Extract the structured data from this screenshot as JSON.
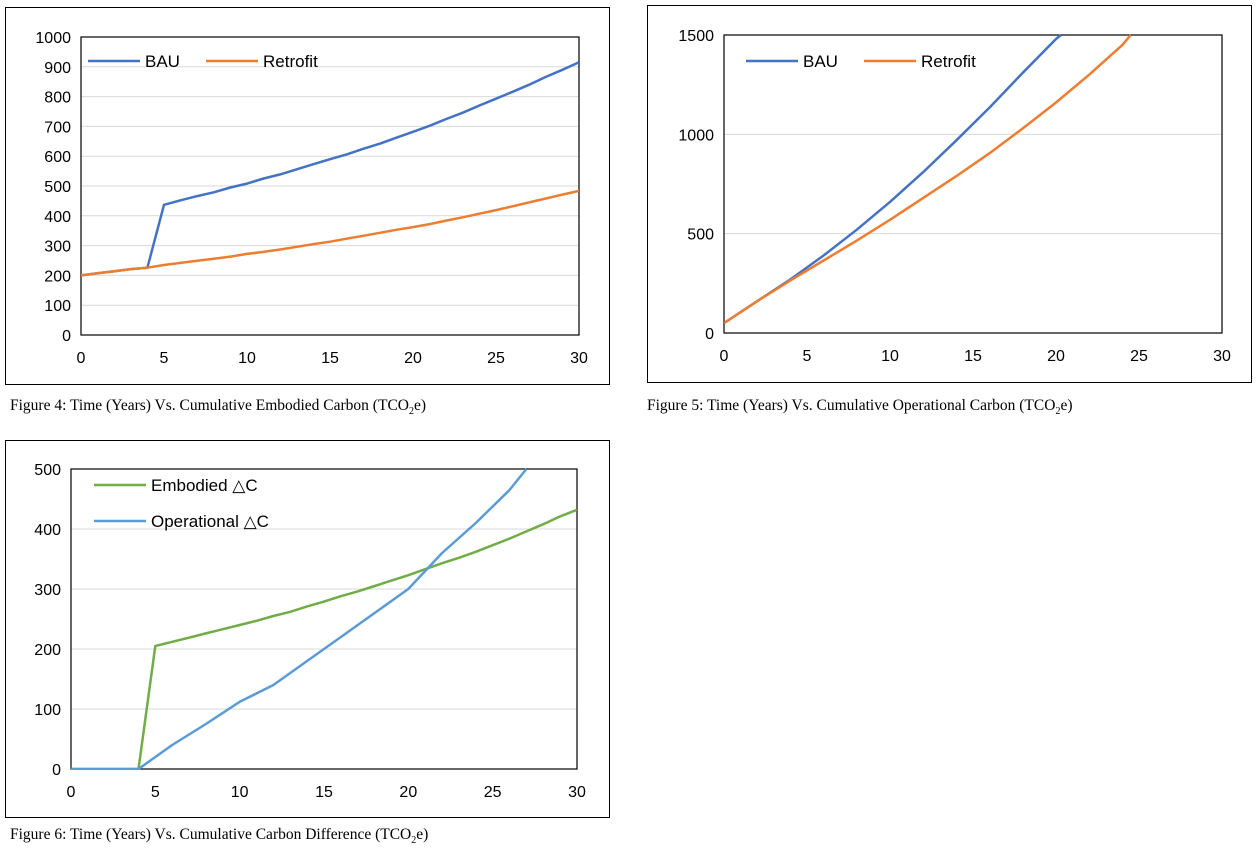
{
  "chart_data": [
    {
      "type": "line",
      "caption": {
        "pre": "Figure 4: Time (Years) Vs. Cumulative Embodied Carbon (TCO",
        "sub": "2",
        "post": "e)"
      },
      "xlim": [
        0,
        30
      ],
      "ylim": [
        0,
        1000
      ],
      "xticks": [
        0,
        5,
        10,
        15,
        20,
        25,
        30
      ],
      "yticks": [
        0,
        100,
        200,
        300,
        400,
        500,
        600,
        700,
        800,
        900,
        1000
      ],
      "grid": true,
      "legend_position": "top-left",
      "series": [
        {
          "name": "BAU",
          "color": "#4472C4",
          "x": [
            0,
            1,
            2,
            3,
            4,
            5,
            6,
            7,
            8,
            9,
            10,
            11,
            12,
            13,
            14,
            15,
            16,
            17,
            18,
            19,
            20,
            21,
            22,
            23,
            24,
            25,
            26,
            27,
            28,
            29,
            30
          ],
          "y": [
            200,
            207,
            214,
            221,
            226,
            437,
            452,
            466,
            479,
            495,
            508,
            525,
            539,
            556,
            573,
            590,
            606,
            625,
            642,
            662,
            682,
            702,
            725,
            746,
            770,
            793,
            816,
            840,
            866,
            890,
            915
          ]
        },
        {
          "name": "Retrofit",
          "color": "#ED7D31",
          "x": [
            0,
            1,
            2,
            3,
            4,
            5,
            6,
            7,
            8,
            9,
            10,
            11,
            12,
            13,
            14,
            15,
            16,
            17,
            18,
            19,
            20,
            21,
            22,
            23,
            24,
            25,
            26,
            27,
            28,
            29,
            30
          ],
          "y": [
            200,
            207,
            214,
            221,
            226,
            235,
            242,
            249,
            256,
            263,
            272,
            279,
            287,
            296,
            305,
            313,
            323,
            333,
            343,
            353,
            362,
            372,
            384,
            395,
            407,
            419,
            432,
            445,
            458,
            471,
            484
          ]
        }
      ]
    },
    {
      "type": "line",
      "caption": {
        "pre": "Figure 5: Time (Years) Vs. Cumulative Operational Carbon (TCO",
        "sub": "2",
        "post": "e)"
      },
      "xlim": [
        0,
        30
      ],
      "ylim": [
        0,
        1500
      ],
      "xticks": [
        0,
        5,
        10,
        15,
        20,
        25,
        30
      ],
      "yticks": [
        0,
        500,
        1000,
        1500
      ],
      "grid": true,
      "legend_position": "top-left",
      "series": [
        {
          "name": "BAU",
          "color": "#4472C4",
          "x": [
            0,
            2,
            4,
            6,
            8,
            10,
            12,
            14,
            16,
            18,
            20,
            20.3
          ],
          "y": [
            50,
            160,
            270,
            390,
            520,
            660,
            810,
            970,
            1135,
            1310,
            1480,
            1500
          ]
        },
        {
          "name": "Retrofit",
          "color": "#ED7D31",
          "x": [
            0,
            2,
            4,
            6,
            8,
            10,
            12,
            14,
            16,
            18,
            20,
            22,
            24,
            24.5
          ],
          "y": [
            50,
            160,
            265,
            365,
            465,
            570,
            680,
            790,
            905,
            1030,
            1160,
            1300,
            1450,
            1500
          ]
        }
      ]
    },
    {
      "type": "line",
      "caption": {
        "pre": "Figure 6: Time (Years) Vs. Cumulative Carbon Difference (TCO",
        "sub": "2",
        "post": "e)"
      },
      "xlim": [
        0,
        30
      ],
      "ylim": [
        0,
        500
      ],
      "xticks": [
        0,
        5,
        10,
        15,
        20,
        25,
        30
      ],
      "yticks": [
        0,
        100,
        200,
        300,
        400,
        500
      ],
      "grid": true,
      "legend_position": "top-left",
      "series": [
        {
          "name": "Embodied △C",
          "color": "#70AD47",
          "x": [
            0,
            1,
            2,
            3,
            4,
            5,
            6,
            7,
            8,
            9,
            10,
            11,
            12,
            13,
            14,
            15,
            16,
            17,
            18,
            19,
            20,
            21,
            22,
            23,
            24,
            25,
            26,
            27,
            28,
            29,
            30
          ],
          "y": [
            0,
            0,
            0,
            0,
            0,
            205,
            212,
            219,
            226,
            233,
            240,
            247,
            255,
            262,
            271,
            279,
            288,
            296,
            305,
            314,
            323,
            333,
            343,
            352,
            362,
            373,
            384,
            396,
            408,
            421,
            432
          ]
        },
        {
          "name": "Operational △C",
          "color": "#5B9BD5",
          "x": [
            0,
            2,
            4,
            6,
            8,
            10,
            12,
            14,
            16,
            18,
            20,
            22,
            24,
            26,
            27
          ],
          "y": [
            0,
            0,
            0,
            40,
            75,
            112,
            140,
            180,
            220,
            260,
            300,
            360,
            410,
            465,
            500
          ]
        }
      ]
    }
  ]
}
